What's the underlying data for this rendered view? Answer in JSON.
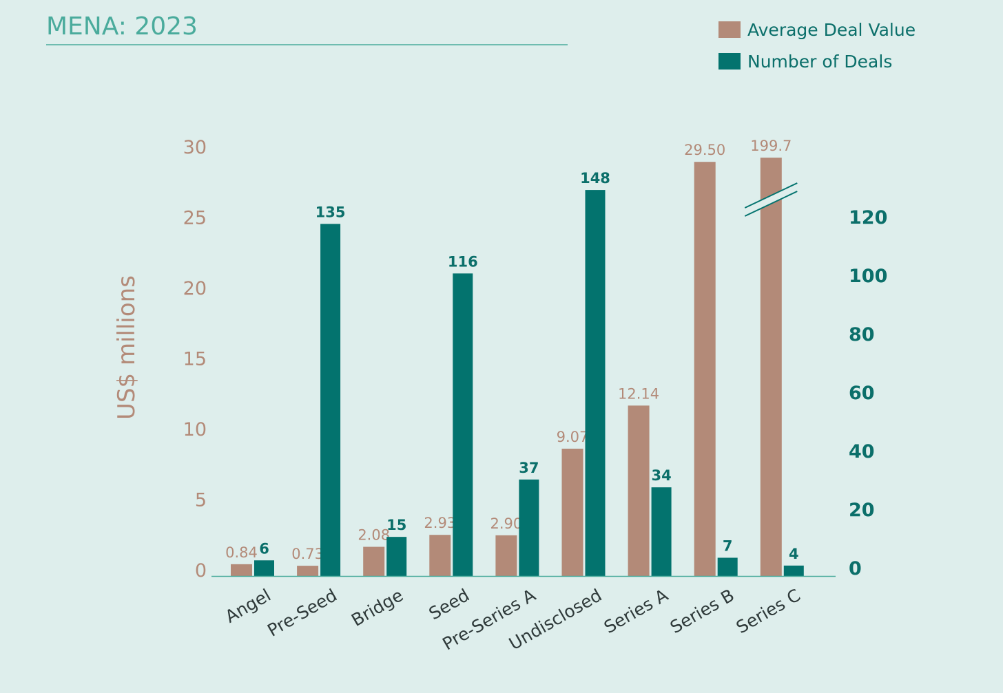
{
  "chart_data": {
    "type": "bar",
    "title": "MENA: 2023",
    "ylabel": "US$ millions",
    "ylim": [
      0,
      30
    ],
    "y2lim": [
      0,
      160
    ],
    "yticks": [
      "0",
      "5",
      "10",
      "15",
      "20",
      "25",
      "30"
    ],
    "y2ticks": [
      "0",
      "20",
      "40",
      "60",
      "80",
      "100",
      "120"
    ],
    "categories": [
      "Angel",
      "Pre-Seed",
      "Bridge",
      "Seed",
      "Pre-Series A",
      "Undisclosed",
      "Series A",
      "Series B",
      "Series C"
    ],
    "series": [
      {
        "name": "Average Deal Value",
        "axis": "left",
        "color": "#b38a78",
        "values": [
          0.84,
          0.73,
          2.08,
          2.93,
          2.9,
          9.07,
          12.14,
          29.5,
          199.7
        ],
        "labels": [
          "0.84",
          "0.73",
          "2.08",
          "2.93",
          "2.90",
          "9.07",
          "12.14",
          "29.50",
          "199.7"
        ]
      },
      {
        "name": "Number of Deals",
        "axis": "right",
        "color": "#03736e",
        "values": [
          6,
          135,
          15,
          116,
          37,
          148,
          34,
          7,
          4
        ],
        "labels": [
          "6",
          "135",
          "15",
          "116",
          "37",
          "148",
          "34",
          "7",
          "4"
        ]
      }
    ],
    "axis_break": "Series C average deal value bar is broken (exceeds axis)",
    "legend": "top-right"
  }
}
